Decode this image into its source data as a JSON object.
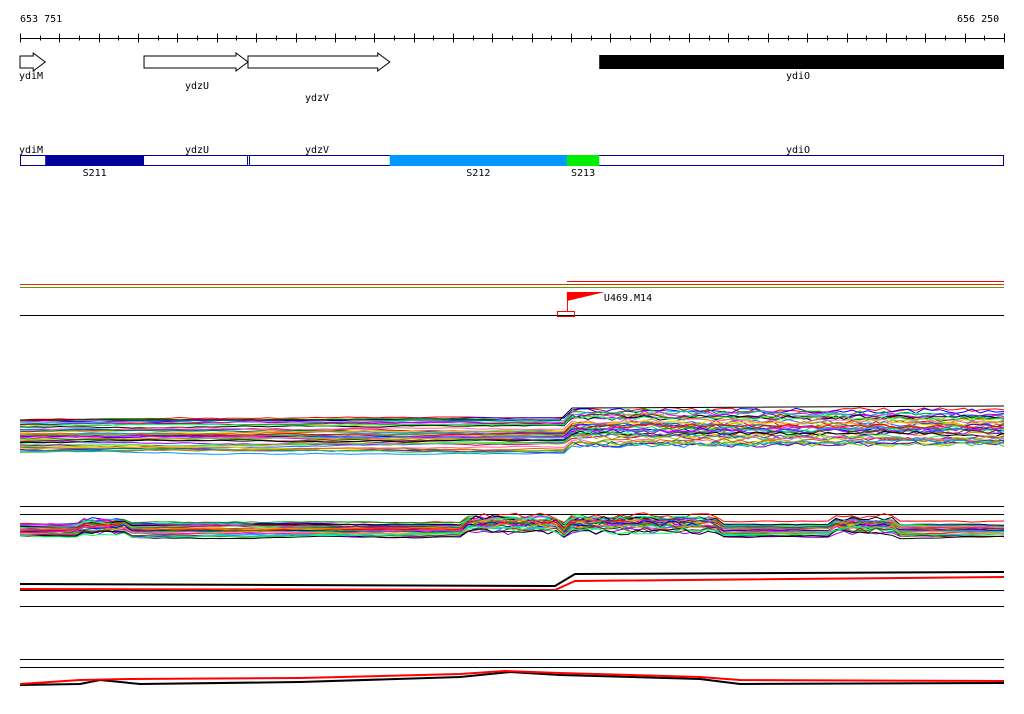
{
  "coordinates": {
    "start": "653 751",
    "end": "656 250",
    "start_bp": 653751,
    "end_bp": 656250
  },
  "genes": [
    {
      "name": "ydiM",
      "start_bp": 653751,
      "end_bp": 653815,
      "strand": "+",
      "color": "#ffffff"
    },
    {
      "name": "ydzU",
      "start_bp": 654066,
      "end_bp": 654330,
      "strand": "+",
      "color": "#ffffff"
    },
    {
      "name": "ydzV",
      "start_bp": 654330,
      "end_bp": 654690,
      "strand": "+",
      "color": "#ffffff"
    },
    {
      "name": "ydiO",
      "start_bp": 655222,
      "end_bp": 656250,
      "strand": "-",
      "color": "#000000"
    }
  ],
  "segment_gene_labels": [
    "ydiM",
    "ydzU",
    "ydzV",
    "ydiO"
  ],
  "segments": [
    {
      "name": "S211",
      "start_bp": 653815,
      "end_bp": 654066,
      "color": "#000099"
    },
    {
      "name": "S212",
      "start_bp": 654690,
      "end_bp": 655140,
      "color": "#0099ff"
    },
    {
      "name": "S213",
      "start_bp": 655140,
      "end_bp": 655222,
      "color": "#00ee00"
    }
  ],
  "marker": {
    "name": "U469.M14",
    "position_bp": 655140,
    "color": "#ff0000"
  }
}
